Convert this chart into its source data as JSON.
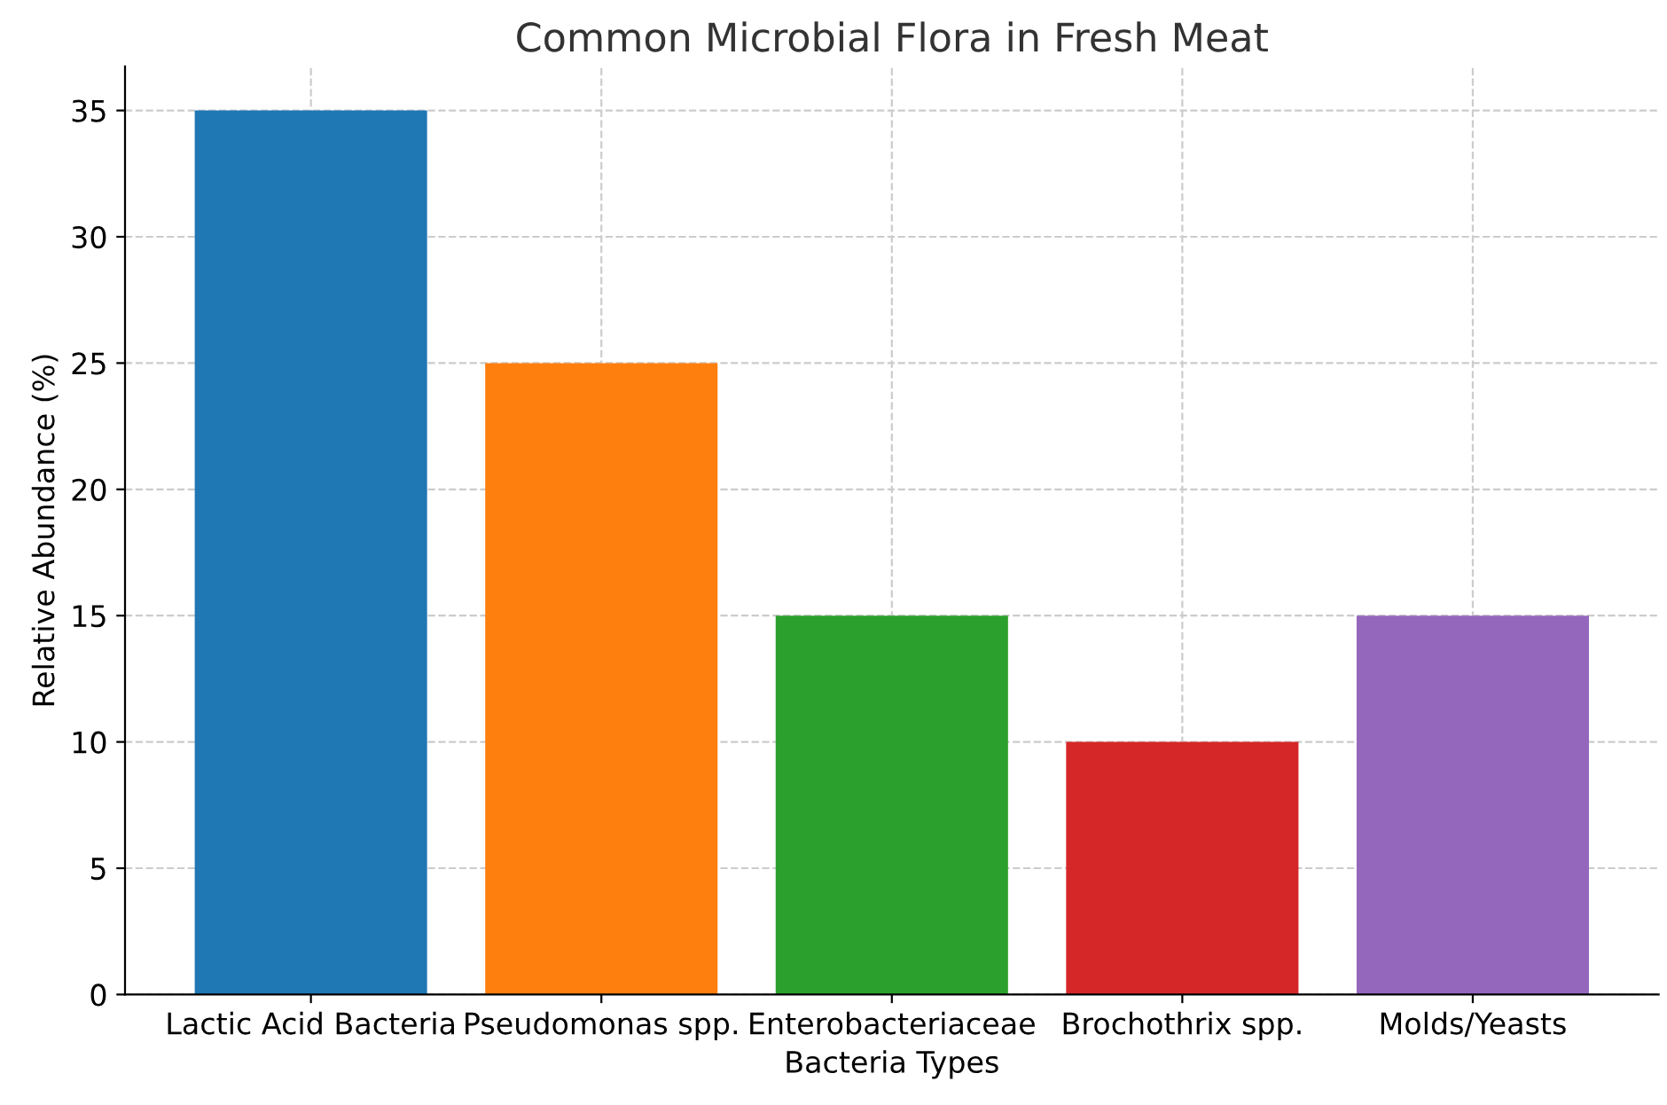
{
  "chart_data": {
    "type": "bar",
    "title": "Common Microbial Flora in Fresh Meat",
    "xlabel": "Bacteria Types",
    "ylabel": "Relative Abundance (%)",
    "categories": [
      "Lactic Acid Bacteria",
      "Pseudomonas spp.",
      "Enterobacteriaceae",
      "Brochothrix spp.",
      "Molds/Yeasts"
    ],
    "values": [
      35,
      25,
      15,
      10,
      15
    ],
    "colors": [
      "#1f77b4",
      "#ff7f0e",
      "#2ca02c",
      "#d62728",
      "#9467bd"
    ],
    "ylim": [
      0,
      36.75
    ],
    "yticks": [
      0,
      5,
      10,
      15,
      20,
      25,
      30,
      35
    ],
    "grid": true
  }
}
